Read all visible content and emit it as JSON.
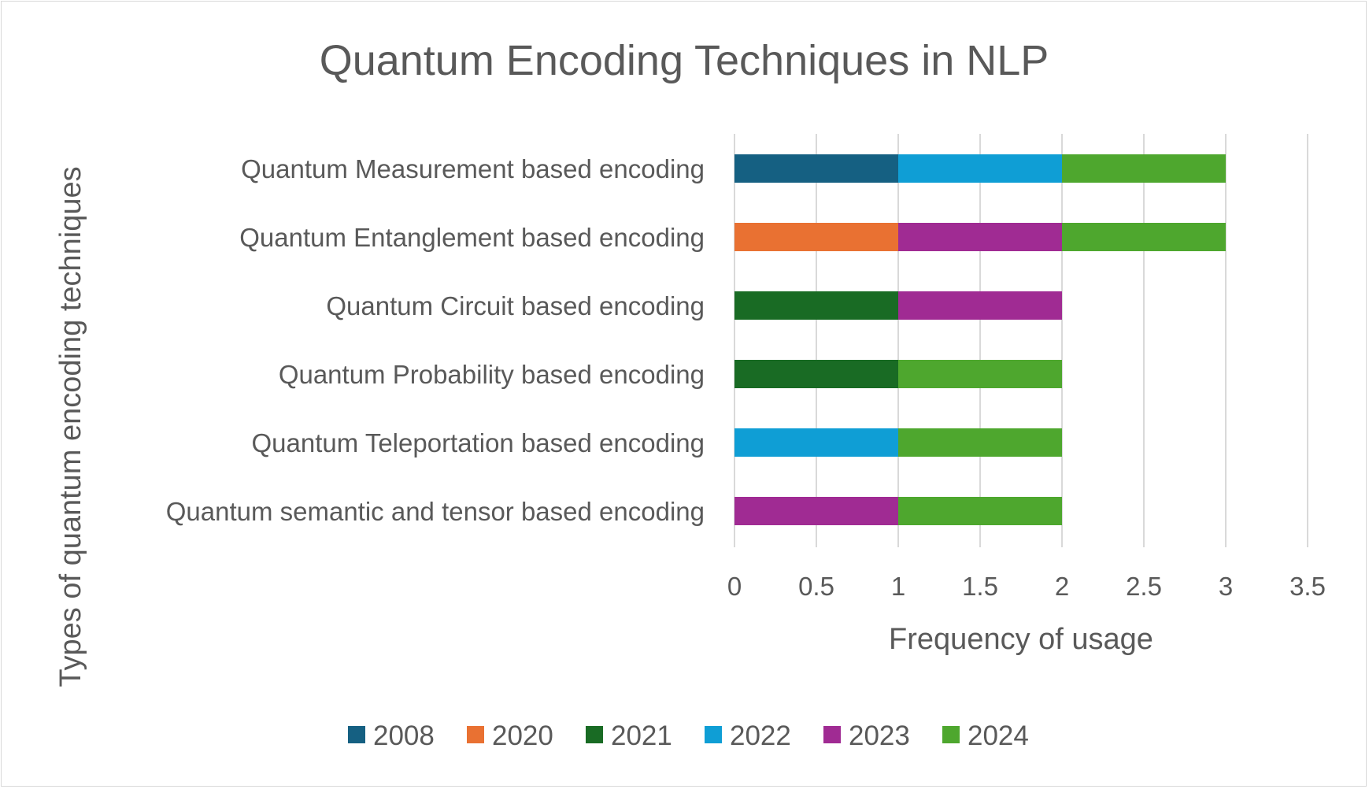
{
  "chart_data": {
    "type": "bar",
    "orientation": "horizontal",
    "stacked": true,
    "title": "Quantum Encoding Techniques in NLP",
    "xlabel": "Frequency of usage",
    "ylabel": "Types of quantum encoding techniques",
    "xlim": [
      0,
      3.5
    ],
    "xticks": [
      "0",
      "0.5",
      "1",
      "1.5",
      "2",
      "2.5",
      "3",
      "3.5"
    ],
    "grid": true,
    "legend_position": "bottom",
    "categories": [
      "Quantum Measurement based encoding",
      "Quantum Entanglement based encoding",
      "Quantum Circuit based encoding",
      "Quantum Probability based encoding",
      "Quantum Teleportation based encoding",
      "Quantum semantic and tensor based encoding"
    ],
    "series": [
      {
        "name": "2008",
        "color": "#156082",
        "values": [
          1,
          0,
          0,
          0,
          0,
          0
        ]
      },
      {
        "name": "2020",
        "color": "#E97132",
        "values": [
          0,
          1,
          0,
          0,
          0,
          0
        ]
      },
      {
        "name": "2021",
        "color": "#196B24",
        "values": [
          0,
          0,
          1,
          1,
          0,
          0
        ]
      },
      {
        "name": "2022",
        "color": "#0F9ED5",
        "values": [
          1,
          0,
          0,
          0,
          1,
          0
        ]
      },
      {
        "name": "2023",
        "color": "#A02B93",
        "values": [
          0,
          1,
          1,
          0,
          0,
          1
        ]
      },
      {
        "name": "2024",
        "color": "#4EA72E",
        "values": [
          1,
          1,
          0,
          1,
          1,
          1
        ]
      }
    ]
  }
}
